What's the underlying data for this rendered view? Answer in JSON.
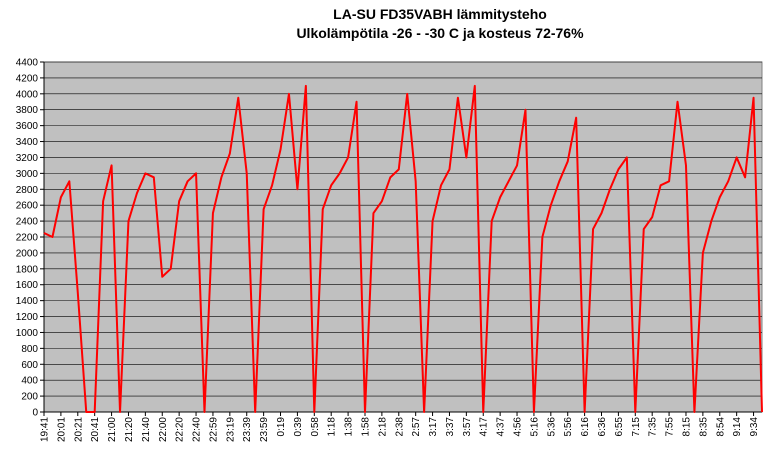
{
  "chart_data": {
    "type": "line",
    "title": "LA-SU FD35VABH lämmitysteho",
    "subtitle": "Ulkolämpötila  -26 - -30 C ja kosteus 72-76%",
    "categories": [
      "19:41",
      null,
      "20:01",
      null,
      "20:21",
      null,
      "20:41",
      null,
      "21:00",
      null,
      "21:20",
      null,
      "21:40",
      null,
      "22:00",
      null,
      "22:20",
      null,
      "22:40",
      null,
      "22:59",
      null,
      "23:19",
      null,
      "23:39",
      null,
      "23:59",
      null,
      "0:19",
      null,
      "0:39",
      null,
      "0:58",
      null,
      "1:18",
      null,
      "1:38",
      null,
      "1:58",
      null,
      "2:18",
      null,
      "2:38",
      null,
      "2:57",
      null,
      "3:17",
      null,
      "3:37",
      null,
      "3:57",
      null,
      "4:17",
      null,
      "4:37",
      null,
      "4:56",
      null,
      "5:16",
      null,
      "5:36",
      null,
      "5:56",
      null,
      "6:16",
      null,
      "6:36",
      null,
      "6:55",
      null,
      "7:15",
      null,
      "7:35",
      null,
      "7:55",
      null,
      "8:15",
      null,
      "8:35",
      null,
      "8:54",
      null,
      "9:14",
      null,
      "9:34",
      null
    ],
    "series": [
      {
        "name": "lämmitysteho",
        "color": "#ff0000",
        "values": [
          2250,
          2200,
          2700,
          2900,
          1500,
          0,
          0,
          2650,
          3100,
          0,
          2400,
          2750,
          3000,
          2950,
          1700,
          1800,
          2650,
          2900,
          3000,
          0,
          2500,
          2950,
          3250,
          3950,
          3000,
          0,
          2550,
          2850,
          3300,
          4000,
          2800,
          4100,
          0,
          2550,
          2850,
          3000,
          3200,
          3900,
          0,
          2500,
          2650,
          2950,
          3050,
          4000,
          2900,
          0,
          2400,
          2850,
          3050,
          3950,
          3200,
          4100,
          0,
          2400,
          2700,
          2900,
          3100,
          3800,
          0,
          2200,
          2600,
          2900,
          3150,
          3700,
          0,
          2300,
          2500,
          2800,
          3050,
          3200,
          0,
          2300,
          2450,
          2850,
          2900,
          3900,
          3100,
          0,
          2000,
          2400,
          2700,
          2900,
          3200,
          2950,
          3950,
          0
        ]
      }
    ],
    "ylim": [
      0,
      4400
    ],
    "yticks": [
      0,
      200,
      400,
      600,
      800,
      1000,
      1200,
      1400,
      1600,
      1800,
      2000,
      2200,
      2400,
      2600,
      2800,
      3000,
      3200,
      3400,
      3600,
      3800,
      4000,
      4200,
      4400
    ],
    "grid": true,
    "plot_background": "#c0c0c0"
  }
}
